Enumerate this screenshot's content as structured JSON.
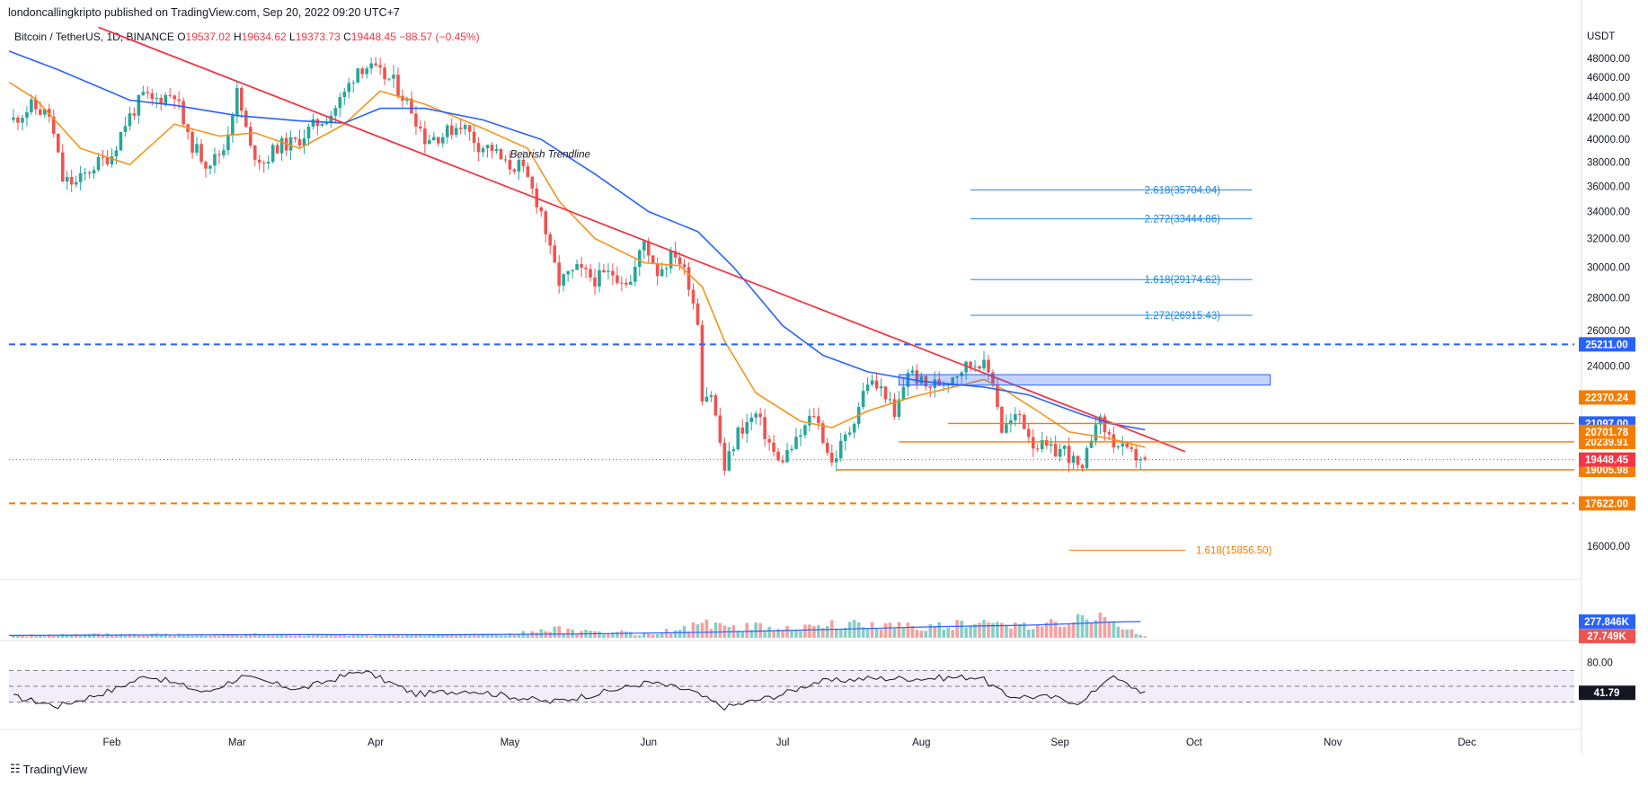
{
  "header": {
    "publisher": "londoncallingkripto published on TradingView.com, Sep 20, 2022 09:20 UTC+7"
  },
  "symbol_bar": {
    "symbol": "Bitcoin / TetherUS, 1D, BINANCE",
    "o_label": "O",
    "o": "19537.02",
    "h_label": "H",
    "h": "19634.62",
    "l_label": "L",
    "l": "19373.73",
    "c_label": "C",
    "c": "19448.45",
    "change": "−88.57 (−0.45%)"
  },
  "brand": {
    "name": "TradingView",
    "logo_icon": "tradingview-logo-icon"
  },
  "colors": {
    "up": "#26a69a",
    "down": "#ef5350",
    "ema_fast": "#f7931a",
    "ema_slow": "#2962ff",
    "trendline": "#f23645",
    "support": "#f57c00",
    "resistance": "#2962ff",
    "fib": "#1e88e5",
    "rsi": "#131722"
  },
  "chart_data": {
    "type": "candlestick",
    "title": "Bitcoin / TetherUS, 1D, BINANCE",
    "currency": "USDT",
    "y_axis": {
      "scale": "log",
      "range": [
        15000,
        50500
      ],
      "ticks": [
        "48000.00",
        "46000.00",
        "44000.00",
        "42000.00",
        "40000.00",
        "38000.00",
        "36000.00",
        "34000.00",
        "32000.00",
        "30000.00",
        "28000.00",
        "26000.00",
        "24000.00",
        "16000.00"
      ]
    },
    "x_axis": {
      "range": [
        "2022-01-09",
        "2022-12-25"
      ],
      "labels": [
        {
          "date": "2022-02-01",
          "text": "Feb"
        },
        {
          "date": "2022-03-01",
          "text": "Mar"
        },
        {
          "date": "2022-04-01",
          "text": "Apr"
        },
        {
          "date": "2022-05-01",
          "text": "May"
        },
        {
          "date": "2022-06-01",
          "text": "Jun"
        },
        {
          "date": "2022-07-01",
          "text": "Jul"
        },
        {
          "date": "2022-08-01",
          "text": "Aug"
        },
        {
          "date": "2022-09-01",
          "text": "Sep"
        },
        {
          "date": "2022-10-01",
          "text": "Oct"
        },
        {
          "date": "2022-11-01",
          "text": "Nov"
        },
        {
          "date": "2022-12-01",
          "text": "Dec"
        }
      ]
    },
    "close_series": {
      "points": [
        [
          "2022-01-10",
          41800
        ],
        [
          "2022-01-14",
          43100
        ],
        [
          "2022-01-18",
          42200
        ],
        [
          "2022-01-21",
          36500
        ],
        [
          "2022-01-24",
          36200
        ],
        [
          "2022-01-28",
          37700
        ],
        [
          "2022-02-01",
          38700
        ],
        [
          "2022-02-04",
          41500
        ],
        [
          "2022-02-08",
          44100
        ],
        [
          "2022-02-10",
          43600
        ],
        [
          "2022-02-15",
          44500
        ],
        [
          "2022-02-18",
          40000
        ],
        [
          "2022-02-22",
          38000
        ],
        [
          "2022-02-24",
          38300
        ],
        [
          "2022-02-26",
          39200
        ],
        [
          "2022-03-01",
          44400
        ],
        [
          "2022-03-04",
          39100
        ],
        [
          "2022-03-07",
          38000
        ],
        [
          "2022-03-10",
          39400
        ],
        [
          "2022-03-14",
          39700
        ],
        [
          "2022-03-18",
          41200
        ],
        [
          "2022-03-22",
          42400
        ],
        [
          "2022-03-25",
          44300
        ],
        [
          "2022-03-28",
          47100
        ],
        [
          "2022-03-30",
          47100
        ],
        [
          "2022-04-02",
          46300
        ],
        [
          "2022-04-05",
          45500
        ],
        [
          "2022-04-09",
          42800
        ],
        [
          "2022-04-12",
          40100
        ],
        [
          "2022-04-16",
          40400
        ],
        [
          "2022-04-20",
          41500
        ],
        [
          "2022-04-24",
          39500
        ],
        [
          "2022-04-27",
          39200
        ],
        [
          "2022-04-30",
          37700
        ],
        [
          "2022-05-03",
          37700
        ],
        [
          "2022-05-05",
          36500
        ],
        [
          "2022-05-08",
          34000
        ],
        [
          "2022-05-10",
          31000
        ],
        [
          "2022-05-12",
          29000
        ],
        [
          "2022-05-16",
          29800
        ],
        [
          "2022-05-20",
          29200
        ],
        [
          "2022-05-24",
          29600
        ],
        [
          "2022-05-28",
          29000
        ],
        [
          "2022-05-31",
          31800
        ],
        [
          "2022-06-03",
          29700
        ],
        [
          "2022-06-07",
          31000
        ],
        [
          "2022-06-10",
          29000
        ],
        [
          "2022-06-12",
          26600
        ],
        [
          "2022-06-13",
          22500
        ],
        [
          "2022-06-15",
          22600
        ],
        [
          "2022-06-18",
          19000
        ],
        [
          "2022-06-21",
          20700
        ],
        [
          "2022-06-25",
          21500
        ],
        [
          "2022-06-30",
          19300
        ],
        [
          "2022-07-04",
          20200
        ],
        [
          "2022-07-08",
          21600
        ],
        [
          "2022-07-12",
          19300
        ],
        [
          "2022-07-16",
          20800
        ],
        [
          "2022-07-20",
          23200
        ],
        [
          "2022-07-24",
          22600
        ],
        [
          "2022-07-26",
          21300
        ],
        [
          "2022-07-29",
          23800
        ],
        [
          "2022-08-02",
          22900
        ],
        [
          "2022-08-06",
          23200
        ],
        [
          "2022-08-10",
          23900
        ],
        [
          "2022-08-14",
          24300
        ],
        [
          "2022-08-17",
          23300
        ],
        [
          "2022-08-19",
          20800
        ],
        [
          "2022-08-23",
          21500
        ],
        [
          "2022-08-26",
          20200
        ],
        [
          "2022-08-30",
          19800
        ],
        [
          "2022-09-02",
          19900
        ],
        [
          "2022-09-06",
          18800
        ],
        [
          "2022-09-09",
          21400
        ],
        [
          "2022-09-13",
          20200
        ],
        [
          "2022-09-16",
          19700
        ],
        [
          "2022-09-19",
          19537
        ],
        [
          "2022-09-20",
          19448
        ]
      ]
    },
    "series": [
      {
        "name": "",
        "type": "line",
        "color": "#f7931a",
        "points": [
          [
            "2022-01-09",
            45500
          ],
          [
            "2022-01-15",
            43800
          ],
          [
            "2022-01-25",
            39200
          ],
          [
            "2022-02-05",
            37800
          ],
          [
            "2022-02-15",
            41400
          ],
          [
            "2022-02-25",
            40300
          ],
          [
            "2022-03-05",
            40600
          ],
          [
            "2022-03-15",
            39200
          ],
          [
            "2022-03-25",
            41400
          ],
          [
            "2022-04-02",
            44600
          ],
          [
            "2022-04-12",
            43300
          ],
          [
            "2022-04-25",
            41000
          ],
          [
            "2022-05-05",
            39200
          ],
          [
            "2022-05-12",
            34800
          ],
          [
            "2022-05-20",
            32000
          ],
          [
            "2022-05-31",
            30300
          ],
          [
            "2022-06-08",
            30100
          ],
          [
            "2022-06-13",
            28700
          ],
          [
            "2022-06-18",
            25400
          ],
          [
            "2022-06-25",
            22600
          ],
          [
            "2022-07-05",
            21200
          ],
          [
            "2022-07-12",
            20900
          ],
          [
            "2022-07-20",
            21700
          ],
          [
            "2022-07-30",
            22400
          ],
          [
            "2022-08-10",
            23000
          ],
          [
            "2022-08-15",
            23300
          ],
          [
            "2022-08-20",
            22700
          ],
          [
            "2022-08-27",
            21700
          ],
          [
            "2022-09-03",
            20700
          ],
          [
            "2022-09-12",
            20400
          ],
          [
            "2022-09-20",
            20000
          ]
        ]
      },
      {
        "name": "",
        "type": "line",
        "color": "#2962ff",
        "points": [
          [
            "2022-01-09",
            48800
          ],
          [
            "2022-01-20",
            46800
          ],
          [
            "2022-02-05",
            43700
          ],
          [
            "2022-02-15",
            43200
          ],
          [
            "2022-03-01",
            42200
          ],
          [
            "2022-03-15",
            41700
          ],
          [
            "2022-03-25",
            41500
          ],
          [
            "2022-04-02",
            42900
          ],
          [
            "2022-04-12",
            42900
          ],
          [
            "2022-04-25",
            41800
          ],
          [
            "2022-05-08",
            40000
          ],
          [
            "2022-05-20",
            37000
          ],
          [
            "2022-06-01",
            34000
          ],
          [
            "2022-06-12",
            32500
          ],
          [
            "2022-06-20",
            30000
          ],
          [
            "2022-07-01",
            26300
          ],
          [
            "2022-07-10",
            24600
          ],
          [
            "2022-07-20",
            23700
          ],
          [
            "2022-08-01",
            23200
          ],
          [
            "2022-08-15",
            22900
          ],
          [
            "2022-08-25",
            22500
          ],
          [
            "2022-09-05",
            21600
          ],
          [
            "2022-09-12",
            21100
          ],
          [
            "2022-09-20",
            20800
          ]
        ]
      }
    ],
    "trendline": {
      "from": [
        "2022-01-29",
        51500
      ],
      "to": [
        "2022-09-29",
        19800
      ],
      "label": "Bearish Trendline",
      "label_at": [
        "2022-05-10",
        38400
      ]
    },
    "zones": [
      {
        "from": "2022-07-27",
        "to": "2022-10-18",
        "low": 23000,
        "high": 23550
      }
    ],
    "h_lines": [
      {
        "value": 25211.0,
        "label": "25211.00",
        "style": "dashed",
        "color": "#2962ff",
        "from": "2022-01-09"
      },
      {
        "value": 17622.0,
        "label": "17622.00",
        "style": "dashed",
        "color": "#f57c00",
        "from": "2022-01-09"
      },
      {
        "value": 21097.0,
        "label": "21097.00",
        "style": "solid",
        "color": "#f57c00",
        "from": "2022-08-07",
        "badge_color": "#2962ff"
      },
      {
        "value": 20239.91,
        "label": "20239.91",
        "style": "solid",
        "color": "#f57c00",
        "from": "2022-07-27"
      },
      {
        "value": 19005.98,
        "label": "19005.98",
        "style": "solid",
        "color": "#f57c00",
        "from": "2022-07-13"
      }
    ],
    "price_badges": [
      {
        "value": 22370.24,
        "label": "22370.24",
        "color": "#f57c00"
      },
      {
        "value": 20701.78,
        "label": "20701.78",
        "color": "#f57c00"
      },
      {
        "value": 19448.45,
        "label": "19448.45",
        "color": "#f23645"
      }
    ],
    "fib_levels": [
      {
        "ratio": "2.618",
        "value": 35704.04,
        "label": "2.618(35704.04)",
        "from": "2022-08-12",
        "to": "2022-10-14",
        "color": "#1e88e5"
      },
      {
        "ratio": "2.272",
        "value": 33444.86,
        "label": "2.272(33444.86)",
        "from": "2022-08-12",
        "to": "2022-10-14",
        "color": "#1e88e5"
      },
      {
        "ratio": "1.618",
        "value": 29174.62,
        "label": "1.618(29174.62)",
        "from": "2022-08-12",
        "to": "2022-10-14",
        "color": "#1e88e5"
      },
      {
        "ratio": "1.272",
        "value": 26915.43,
        "label": "1.272(26915.43)",
        "from": "2022-08-12",
        "to": "2022-10-14",
        "color": "#1e88e5"
      },
      {
        "ratio": "1.618",
        "value": 15856.5,
        "label": "1.618(15856.50)",
        "from": "2022-09-03",
        "to": "2022-09-29",
        "color": "#f57c00"
      }
    ],
    "volume_pane": {
      "ma_label": "277.846K",
      "last_label": "27.749K",
      "range_k": [
        0,
        1000
      ],
      "ma_k": [
        [
          "2022-01-09",
          40
        ],
        [
          "2022-02-15",
          50
        ],
        [
          "2022-03-15",
          55
        ],
        [
          "2022-04-15",
          52
        ],
        [
          "2022-05-15",
          65
        ],
        [
          "2022-06-15",
          95
        ],
        [
          "2022-07-15",
          150
        ],
        [
          "2022-08-05",
          190
        ],
        [
          "2022-08-25",
          215
        ],
        [
          "2022-09-05",
          245
        ],
        [
          "2022-09-12",
          270
        ],
        [
          "2022-09-19",
          278
        ]
      ],
      "levels_k": [
        [
          "2022-01-09",
          35
        ],
        [
          "2022-02-01",
          60
        ],
        [
          "2022-03-01",
          55
        ],
        [
          "2022-04-01",
          45
        ],
        [
          "2022-05-01",
          60
        ],
        [
          "2022-05-12",
          140
        ],
        [
          "2022-06-01",
          60
        ],
        [
          "2022-06-14",
          220
        ],
        [
          "2022-07-01",
          160
        ],
        [
          "2022-07-15",
          220
        ],
        [
          "2022-08-01",
          210
        ],
        [
          "2022-08-15",
          230
        ],
        [
          "2022-09-01",
          270
        ],
        [
          "2022-09-10",
          340
        ],
        [
          "2022-09-20",
          28
        ]
      ]
    },
    "rsi_pane": {
      "ticks": [
        "80.00"
      ],
      "bands": [
        70,
        30
      ],
      "mid": 50,
      "last_label": "41.79",
      "points": [
        [
          "2022-01-09",
          38
        ],
        [
          "2022-01-20",
          25
        ],
        [
          "2022-02-01",
          45
        ],
        [
          "2022-02-09",
          64
        ],
        [
          "2022-02-22",
          42
        ],
        [
          "2022-03-02",
          62
        ],
        [
          "2022-03-15",
          46
        ],
        [
          "2022-03-29",
          70
        ],
        [
          "2022-04-10",
          40
        ],
        [
          "2022-04-22",
          45
        ],
        [
          "2022-05-10",
          30
        ],
        [
          "2022-05-20",
          40
        ],
        [
          "2022-06-01",
          55
        ],
        [
          "2022-06-10",
          45
        ],
        [
          "2022-06-18",
          23
        ],
        [
          "2022-07-01",
          40
        ],
        [
          "2022-07-08",
          55
        ],
        [
          "2022-07-20",
          60
        ],
        [
          "2022-08-01",
          60
        ],
        [
          "2022-08-14",
          62
        ],
        [
          "2022-08-20",
          38
        ],
        [
          "2022-08-30",
          36
        ],
        [
          "2022-09-06",
          29
        ],
        [
          "2022-09-12",
          63
        ],
        [
          "2022-09-20",
          42
        ]
      ]
    }
  }
}
